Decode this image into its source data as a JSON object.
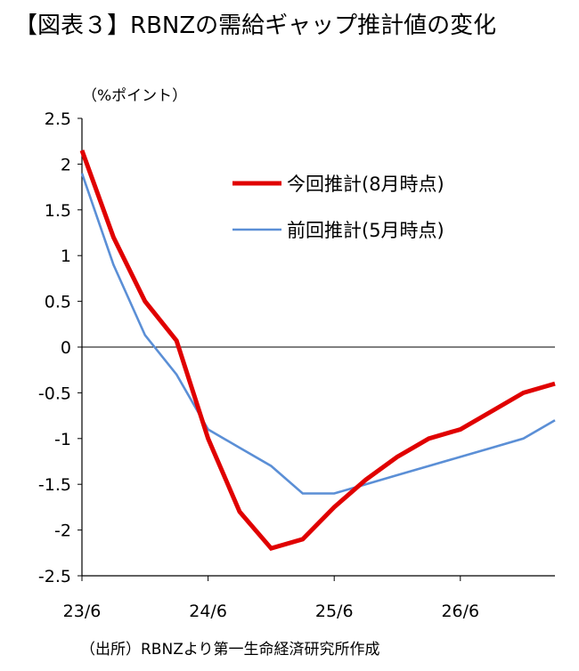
{
  "title": "【図表３】RBNZの需給ギャップ推計値の変化",
  "source": "（出所）RBNZより第一生命経済研究所作成",
  "chart_data": {
    "type": "line",
    "ylabel": "（%ポイント）",
    "ylim": [
      -2.5,
      2.5
    ],
    "yticks": [
      2.5,
      2,
      1.5,
      1,
      0.5,
      0,
      -0.5,
      -1,
      -1.5,
      -2,
      -2.5
    ],
    "ytick_labels": [
      "2.5",
      "2",
      "1.5",
      "1",
      "0.5",
      "0",
      "-0.5",
      "-1",
      "-1.5",
      "-2",
      "-2.5"
    ],
    "xlim": [
      0,
      15
    ],
    "xticks": [
      0,
      4,
      8,
      12
    ],
    "xtick_labels": [
      "23/6",
      "24/6",
      "25/6",
      "26/6"
    ],
    "legend_position": "top-right",
    "series": [
      {
        "name": "今回推計(8月時点)",
        "color": "#e00000",
        "x": [
          0,
          1,
          2,
          3,
          4,
          5,
          6,
          7,
          8,
          9,
          10,
          11,
          12,
          13,
          14,
          15
        ],
        "values": [
          2.15,
          1.2,
          0.5,
          0.07,
          -1.0,
          -1.8,
          -2.2,
          -2.1,
          -1.75,
          -1.45,
          -1.2,
          -1.0,
          -0.9,
          -0.7,
          -0.5,
          -0.4
        ]
      },
      {
        "name": "前回推計(5月時点)",
        "color": "#5b8fd6",
        "x": [
          0,
          1,
          2,
          3,
          4,
          5,
          6,
          7,
          8,
          9,
          10,
          11,
          12,
          13,
          14,
          15
        ],
        "values": [
          1.9,
          0.9,
          0.13,
          -0.3,
          -0.9,
          -1.1,
          -1.3,
          -1.6,
          -1.6,
          -1.5,
          -1.4,
          -1.3,
          -1.2,
          -1.1,
          -1.0,
          -0.8
        ]
      }
    ]
  }
}
